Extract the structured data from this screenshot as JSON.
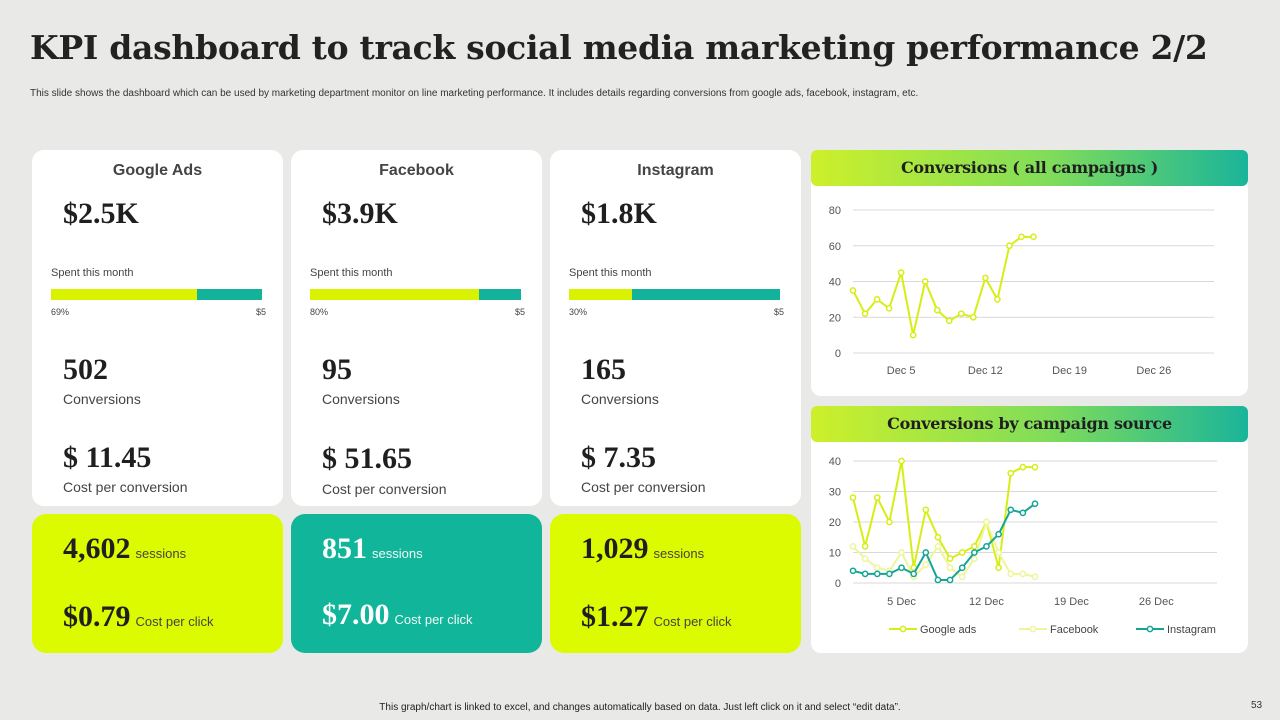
{
  "title": "KPI dashboard to track social media marketing performance 2/2",
  "subtitle": "This slide shows the dashboard which can be used by marketing department monitor on line marketing performance. It includes details regarding conversions from google ads, facebook, instagram, etc.",
  "channels": [
    {
      "name": "Google Ads",
      "spent": "$2.5K",
      "spent_label": "Spent this month",
      "spent_pct_label": "69%",
      "spent_fraction": 0.69,
      "bar_end": "$5",
      "conversions": "502",
      "conversions_label": "Conversions",
      "cpc_conv": "$ 11.45",
      "cpc_conv_label": "Cost per conversion",
      "sessions": "4,602",
      "sessions_label": "sessions",
      "cpc": "$0.79",
      "cpc_label": "Cost per click"
    },
    {
      "name": "Facebook",
      "spent": "$3.9K",
      "spent_label": "Spent this month",
      "spent_pct_label": "80%",
      "spent_fraction": 0.8,
      "bar_end": "$5",
      "conversions": "95",
      "conversions_label": "Conversions",
      "cpc_conv": "$ 51.65",
      "cpc_conv_label": "Cost per conversion",
      "sessions": "851",
      "sessions_label": "sessions",
      "cpc": "$7.00",
      "cpc_label": "Cost per click"
    },
    {
      "name": "Instagram",
      "spent": "$1.8K",
      "spent_label": "Spent this month",
      "spent_pct_label": "30%",
      "spent_fraction": 0.3,
      "bar_end": "$5",
      "conversions": "165",
      "conversions_label": "Conversions",
      "cpc_conv": "$ 7.35",
      "cpc_conv_label": "Cost per conversion",
      "sessions": "1,029",
      "sessions_label": "sessions",
      "cpc": "$1.27",
      "cpc_label": "Cost per click"
    }
  ],
  "colors": {
    "lime": "#dcfa00",
    "teal": "#10b59a",
    "line_yellow": "#d7ee14",
    "line_pale": "#eef59a",
    "line_teal": "#14a596",
    "grid": "#d9d9d9"
  },
  "chart_data": [
    {
      "type": "line",
      "title": "Conversions ( all campaigns )",
      "xlim": [
        1,
        31
      ],
      "ylim": [
        0,
        80
      ],
      "yticks": [
        0,
        20,
        40,
        60,
        80
      ],
      "xticks": [
        {
          "label": "Dec 5",
          "value": 5
        },
        {
          "label": "Dec 12",
          "value": 12
        },
        {
          "label": "Dec 19",
          "value": 19
        },
        {
          "label": "Dec 26",
          "value": 26
        }
      ],
      "grid": true,
      "series": [
        {
          "x": [
            1,
            2,
            3,
            4,
            5,
            6,
            7,
            8,
            9,
            10,
            11,
            12,
            13,
            14,
            15,
            16
          ],
          "values": [
            35,
            22,
            30,
            25,
            45,
            10,
            40,
            24,
            18,
            22,
            20,
            42,
            30,
            60,
            65,
            65
          ],
          "color": "#d7ee14"
        }
      ]
    },
    {
      "type": "line",
      "title": "Conversions by campaign source",
      "xlim": [
        1,
        31
      ],
      "ylim": [
        0,
        40
      ],
      "yticks": [
        0,
        10,
        20,
        30,
        40
      ],
      "xticks": [
        {
          "label": "5 Dec",
          "value": 5
        },
        {
          "label": "12 Dec",
          "value": 12
        },
        {
          "label": "19 Dec",
          "value": 19
        },
        {
          "label": "26 Dec",
          "value": 26
        }
      ],
      "grid": true,
      "legend": "bottom",
      "series": [
        {
          "name": "Google ads",
          "x": [
            1,
            2,
            3,
            4,
            5,
            6,
            7,
            8,
            9,
            10,
            11,
            12,
            13,
            14,
            15,
            16
          ],
          "values": [
            28,
            12,
            28,
            20,
            40,
            5,
            24,
            15,
            8,
            10,
            12,
            20,
            5,
            36,
            38,
            38
          ],
          "color": "#d7ee14"
        },
        {
          "name": "Facebook",
          "x": [
            1,
            2,
            3,
            4,
            5,
            6,
            7,
            8,
            9,
            10,
            11,
            12,
            13,
            14,
            15,
            16
          ],
          "values": [
            12,
            8,
            5,
            4,
            10,
            2,
            6,
            12,
            5,
            2,
            8,
            20,
            10,
            3,
            3,
            2
          ],
          "color": "#eef59a"
        },
        {
          "name": "Instagram",
          "x": [
            1,
            2,
            3,
            4,
            5,
            6,
            7,
            8,
            9,
            10,
            11,
            12,
            13,
            14,
            15,
            16
          ],
          "values": [
            4,
            3,
            3,
            3,
            5,
            3,
            10,
            1,
            1,
            5,
            10,
            12,
            16,
            24,
            23,
            26
          ],
          "color": "#14a596"
        }
      ]
    }
  ],
  "footer": "This graph/chart is linked to excel, and changes automatically based on data. Just left click on it and select “edit data”.",
  "page_number": "53"
}
